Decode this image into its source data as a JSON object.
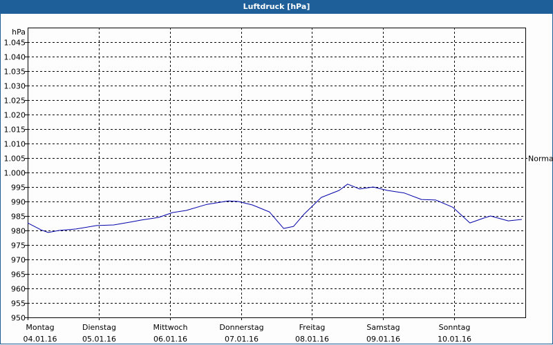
{
  "window": {
    "title": "Luftdruck [hPa]"
  },
  "chart_data": {
    "type": "line",
    "title": "Luftdruck [hPa]",
    "xlabel": "",
    "ylabel": "hPa",
    "ylim": [
      950,
      1050
    ],
    "yticks": [
      950,
      955,
      960,
      965,
      970,
      975,
      980,
      985,
      990,
      995,
      1000,
      1005,
      1010,
      1015,
      1020,
      1025,
      1030,
      1035,
      1040,
      1045
    ],
    "ytick_labels": [
      "950",
      "955",
      "960",
      "965",
      "970",
      "975",
      "980",
      "985",
      "990",
      "995",
      "1.000",
      "1.005",
      "1.010",
      "1.015",
      "1.020",
      "1.025",
      "1.030",
      "1.035",
      "1.040",
      "1.045"
    ],
    "grid": true,
    "categories": [
      {
        "day": "Montag",
        "date": "04.01.16"
      },
      {
        "day": "Dienstag",
        "date": "05.01.16"
      },
      {
        "day": "Mittwoch",
        "date": "06.01.16"
      },
      {
        "day": "Donnerstag",
        "date": "07.01.16"
      },
      {
        "day": "Freitag",
        "date": "08.01.16"
      },
      {
        "day": "Samstag",
        "date": "09.01.16"
      },
      {
        "day": "Sonntag",
        "date": "10.01.16"
      }
    ],
    "annotations": [
      {
        "label": "Normal",
        "value": 1005
      }
    ],
    "series": [
      {
        "name": "Luftdruck",
        "color": "#0000aa",
        "x_days": [
          0,
          0.19,
          0.29,
          0.44,
          0.68,
          0.97,
          1.21,
          1.45,
          1.6,
          1.84,
          2.04,
          2.23,
          2.52,
          2.82,
          2.96,
          3.16,
          3.4,
          3.6,
          3.74,
          3.89,
          4.13,
          4.38,
          4.5,
          4.67,
          4.86,
          5.06,
          5.3,
          5.54,
          5.74,
          5.98,
          6.22,
          6.42,
          6.51,
          6.76,
          6.95
        ],
        "values": [
          982.6,
          980.2,
          979.3,
          980.0,
          980.5,
          981.7,
          981.9,
          982.9,
          983.6,
          984.5,
          986.2,
          986.9,
          989.0,
          990.2,
          990.0,
          988.8,
          986.4,
          980.7,
          981.4,
          985.7,
          991.4,
          993.8,
          996.0,
          994.3,
          995.0,
          993.8,
          992.9,
          990.7,
          990.5,
          988.0,
          982.6,
          984.3,
          985.0,
          983.3,
          983.8
        ]
      }
    ]
  }
}
